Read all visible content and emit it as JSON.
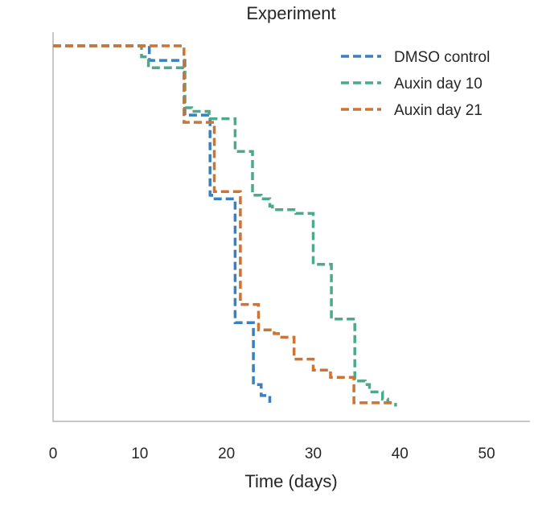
{
  "chart_data": {
    "type": "line",
    "step": "post",
    "title": "Experiment",
    "xlabel": "Time (days)",
    "ylabel": "",
    "xlim": [
      0,
      55
    ],
    "ylim": [
      0,
      1.0
    ],
    "xticks": [
      0,
      10,
      20,
      30,
      40,
      50
    ],
    "yticks": [],
    "grid": false,
    "legend_position": "top-right",
    "series": [
      {
        "name": "DMSO control",
        "color": "#3a7fbf",
        "x": [
          0,
          11,
          11.1,
          15,
          15.2,
          18,
          18.1,
          18.3,
          20.5,
          21,
          23,
          23.1,
          24,
          25
        ],
        "y": [
          1.0,
          1.0,
          0.96,
          0.96,
          0.81,
          0.81,
          0.59,
          0.58,
          0.58,
          0.24,
          0.24,
          0.07,
          0.04,
          0.02
        ]
      },
      {
        "name": "Auxin day 10",
        "color": "#4aaa8a",
        "x": [
          0,
          10,
          10.2,
          11,
          15,
          15.2,
          16,
          17.8,
          18,
          18.3,
          20.5,
          21,
          22.5,
          23,
          23.2,
          24,
          25,
          25.3,
          27.8,
          28,
          29.5,
          30,
          32,
          32.1,
          34,
          34.5,
          34.8,
          36,
          36.5,
          38,
          38.6,
          39.5
        ],
        "y": [
          1.0,
          1.0,
          0.97,
          0.94,
          0.94,
          0.83,
          0.82,
          0.82,
          0.8,
          0.8,
          0.8,
          0.71,
          0.71,
          0.59,
          0.59,
          0.58,
          0.56,
          0.55,
          0.55,
          0.54,
          0.54,
          0.4,
          0.4,
          0.25,
          0.25,
          0.25,
          0.08,
          0.07,
          0.05,
          0.03,
          0.02,
          0.01
        ]
      },
      {
        "name": "Auxin day 21",
        "color": "#cc7436",
        "x": [
          0,
          15,
          15.1,
          18,
          18.5,
          18.6,
          21,
          21.5,
          21.6,
          23.5,
          23.7,
          25.5,
          26,
          27.5,
          27.8,
          29.5,
          30,
          31.5,
          32,
          34.5,
          34.7,
          39.5
        ],
        "y": [
          1.0,
          1.0,
          0.79,
          0.79,
          0.79,
          0.6,
          0.6,
          0.6,
          0.29,
          0.29,
          0.22,
          0.21,
          0.2,
          0.2,
          0.14,
          0.14,
          0.11,
          0.11,
          0.09,
          0.09,
          0.02,
          0.02
        ]
      }
    ]
  }
}
